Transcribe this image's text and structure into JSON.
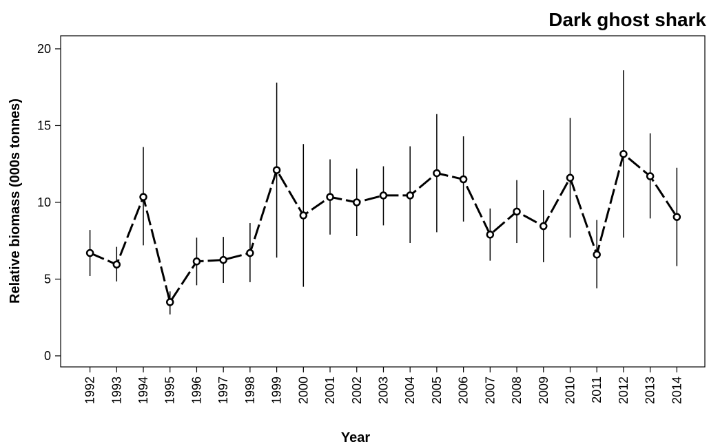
{
  "chart_data": {
    "type": "line",
    "title": "Dark ghost shark",
    "xlabel": "Year",
    "ylabel": "Relative biomass (000s tonnes)",
    "x": [
      1992,
      1993,
      1994,
      1995,
      1996,
      1997,
      1998,
      1999,
      2000,
      2001,
      2002,
      2003,
      2004,
      2005,
      2006,
      2007,
      2008,
      2009,
      2010,
      2011,
      2012,
      2013,
      2014
    ],
    "series": [
      {
        "color": "#000000",
        "values": [
          6.7,
          5.95,
          10.35,
          3.5,
          6.15,
          6.25,
          6.7,
          12.1,
          9.15,
          10.35,
          10.0,
          10.45,
          10.45,
          11.9,
          11.5,
          7.9,
          9.4,
          8.45,
          11.6,
          6.6,
          13.15,
          11.7,
          9.05
        ],
        "lower": [
          5.2,
          4.85,
          7.2,
          2.7,
          4.6,
          4.75,
          4.8,
          6.4,
          4.5,
          7.9,
          7.8,
          8.5,
          7.35,
          8.05,
          8.75,
          6.2,
          7.35,
          6.1,
          7.7,
          4.4,
          7.7,
          8.95,
          5.85
        ],
        "upper": [
          8.2,
          7.1,
          13.6,
          4.2,
          7.7,
          7.75,
          8.65,
          17.8,
          13.8,
          12.8,
          12.2,
          12.35,
          13.65,
          15.75,
          14.3,
          9.6,
          11.45,
          10.8,
          15.5,
          8.85,
          18.6,
          14.5,
          12.25
        ]
      }
    ],
    "xlim": [
      1990.9,
      2015.05
    ],
    "xticks": [
      1992,
      1993,
      1994,
      1995,
      1996,
      1997,
      1998,
      1999,
      2000,
      2001,
      2002,
      2003,
      2004,
      2005,
      2006,
      2007,
      2008,
      2009,
      2010,
      2011,
      2012,
      2013,
      2014
    ],
    "ylim": [
      -0.72,
      20.85
    ],
    "yticks": [
      0,
      5,
      10,
      15,
      20
    ]
  }
}
